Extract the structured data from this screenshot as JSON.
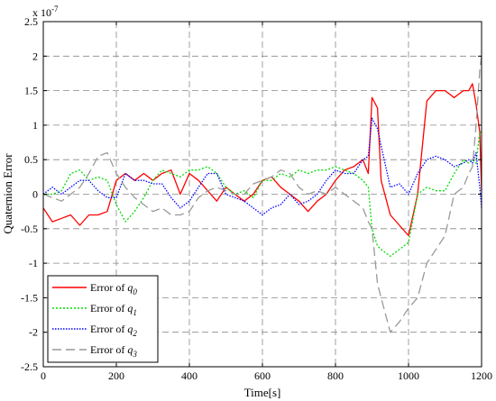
{
  "chart_data": {
    "type": "line",
    "title": "",
    "xlabel": "Time[s]",
    "ylabel": "Quaternion Error",
    "y_exponent_label": "x 10",
    "y_exponent_power": "-7",
    "xlim": [
      0,
      1200
    ],
    "ylim": [
      -2.5,
      2.5
    ],
    "x_ticks": [
      "0",
      "200",
      "400",
      "600",
      "800",
      "1000",
      "1200"
    ],
    "y_ticks": [
      "2.5",
      "2",
      "1.5",
      "1",
      "0.5",
      "0",
      "-0.5",
      "-1",
      "-1.5",
      "-2",
      "-2.5"
    ],
    "grid": true,
    "legend_position": "bottom-left",
    "x": [
      0,
      25,
      50,
      75,
      100,
      125,
      150,
      175,
      200,
      225,
      250,
      275,
      300,
      325,
      350,
      375,
      400,
      425,
      450,
      475,
      500,
      525,
      550,
      575,
      600,
      625,
      650,
      675,
      700,
      725,
      750,
      775,
      800,
      825,
      850,
      875,
      890,
      900,
      915,
      925,
      950,
      975,
      1000,
      1025,
      1050,
      1075,
      1100,
      1125,
      1150,
      1165,
      1175,
      1185,
      1195,
      1200
    ],
    "series": [
      {
        "legend_prefix": "Error of ",
        "legend_symbol": "q",
        "legend_subscript": "0",
        "color": "#ff0000",
        "dash": "",
        "values": [
          -0.2,
          -0.4,
          -0.35,
          -0.3,
          -0.45,
          -0.3,
          -0.3,
          -0.25,
          0.2,
          0.3,
          0.2,
          0.3,
          0.2,
          0.3,
          0.35,
          0.0,
          0.3,
          0.2,
          0.05,
          -0.1,
          0.1,
          0.0,
          -0.1,
          0.0,
          0.2,
          0.25,
          0.1,
          0.0,
          -0.1,
          -0.25,
          -0.1,
          0.0,
          0.2,
          0.35,
          0.4,
          0.5,
          0.3,
          1.4,
          1.25,
          0.2,
          -0.3,
          -0.45,
          -0.6,
          0.0,
          1.35,
          1.5,
          1.5,
          1.4,
          1.5,
          1.5,
          1.6,
          1.3,
          0.9,
          0.05
        ]
      },
      {
        "legend_prefix": "Error of ",
        "legend_symbol": "q",
        "legend_subscript": "1",
        "color": "#00dd00",
        "dash": "2,2",
        "values": [
          0.0,
          0.0,
          0.05,
          0.3,
          0.35,
          0.2,
          0.25,
          0.2,
          -0.15,
          -0.4,
          -0.25,
          -0.05,
          0.2,
          0.35,
          0.3,
          0.25,
          0.35,
          0.35,
          0.4,
          0.3,
          0.1,
          0.0,
          0.05,
          -0.05,
          0.2,
          0.2,
          0.3,
          0.25,
          0.35,
          0.3,
          0.35,
          0.35,
          0.4,
          0.35,
          0.3,
          0.2,
          0.1,
          -0.5,
          -0.75,
          -0.8,
          -0.9,
          -0.8,
          -0.7,
          0.0,
          0.1,
          0.05,
          0.05,
          0.3,
          0.5,
          0.45,
          0.5,
          0.45,
          0.9,
          0.9
        ]
      },
      {
        "legend_prefix": "Error of ",
        "legend_symbol": "q",
        "legend_subscript": "2",
        "color": "#0000ff",
        "dash": "1.5,1.5",
        "values": [
          0.0,
          0.1,
          0.0,
          0.1,
          0.2,
          0.2,
          0.05,
          -0.05,
          -0.05,
          0.3,
          0.2,
          0.2,
          0.15,
          0.15,
          -0.05,
          -0.2,
          -0.1,
          0.1,
          0.3,
          0.3,
          0.0,
          -0.05,
          -0.1,
          -0.2,
          -0.3,
          -0.2,
          -0.15,
          0.0,
          -0.15,
          -0.1,
          0.0,
          0.2,
          0.35,
          0.3,
          0.3,
          0.5,
          0.55,
          1.1,
          0.95,
          0.7,
          0.1,
          0.15,
          0.0,
          0.3,
          0.5,
          0.55,
          0.5,
          0.4,
          0.45,
          0.5,
          0.45,
          0.6,
          0.1,
          -0.2
        ]
      },
      {
        "legend_prefix": "Error of ",
        "legend_symbol": "q",
        "legend_subscript": "3",
        "color": "#999999",
        "dash": "10,5",
        "values": [
          0.0,
          -0.05,
          -0.1,
          0.0,
          0.1,
          0.3,
          0.55,
          0.6,
          0.3,
          0.1,
          -0.05,
          -0.15,
          -0.25,
          -0.2,
          -0.3,
          -0.3,
          -0.25,
          -0.05,
          0.05,
          0.1,
          0.05,
          0.0,
          0.0,
          0.15,
          0.2,
          0.25,
          0.35,
          0.3,
          0.1,
          0.0,
          0.05,
          0.0,
          0.1,
          0.0,
          -0.1,
          -0.2,
          -0.4,
          -0.5,
          -1.3,
          -1.5,
          -2.0,
          -1.85,
          -1.65,
          -1.5,
          -1.0,
          -0.8,
          -0.6,
          0.0,
          0.1,
          0.3,
          0.4,
          1.0,
          1.8,
          2.0
        ]
      }
    ]
  }
}
